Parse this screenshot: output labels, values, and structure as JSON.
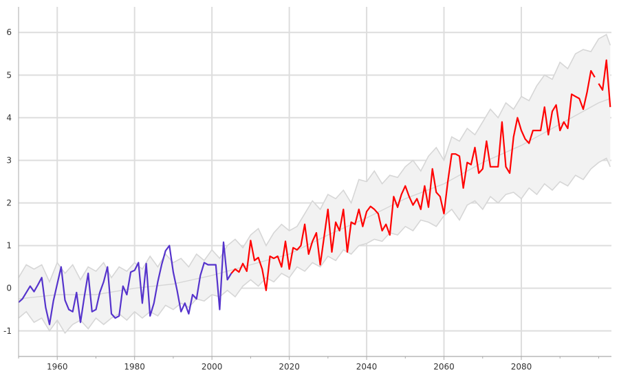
{
  "chart_data": {
    "type": "line",
    "title": "",
    "xlabel": "",
    "ylabel": "",
    "xlim": [
      1950,
      2099
    ],
    "ylim": [
      -1.6,
      6.6
    ],
    "grid": true,
    "legend": "none",
    "x_ticks": [
      "1960",
      "1980",
      "2000",
      "2020",
      "2040",
      "2060",
      "2080"
    ],
    "y_ticks": [
      "-1",
      "0",
      "1",
      "2",
      "3",
      "4",
      "5",
      "6"
    ],
    "colors": {
      "historical": "#5533cc",
      "projection": "#ff0000",
      "band_fill": "#f2f2f2",
      "band_edge": "#d6d6d6",
      "grid": "#dddddd",
      "axis": "#aaaaaa"
    },
    "series": [
      {
        "values": [
          [
            1950,
            -0.33
          ],
          [
            1951,
            -0.25
          ],
          [
            1952,
            -0.1
          ],
          [
            1953,
            0.05
          ],
          [
            1954,
            -0.08
          ],
          [
            1955,
            0.08
          ],
          [
            1956,
            0.25
          ],
          [
            1957,
            -0.45
          ],
          [
            1958,
            -0.85
          ],
          [
            1959,
            -0.3
          ],
          [
            1960,
            0.1
          ],
          [
            1961,
            0.5
          ],
          [
            1962,
            -0.28
          ],
          [
            1963,
            -0.5
          ],
          [
            1964,
            -0.55
          ],
          [
            1965,
            -0.1
          ],
          [
            1966,
            -0.8
          ],
          [
            1967,
            -0.2
          ],
          [
            1968,
            0.35
          ],
          [
            1969,
            -0.55
          ],
          [
            1970,
            -0.5
          ],
          [
            1971,
            -0.1
          ],
          [
            1972,
            0.15
          ],
          [
            1973,
            0.5
          ],
          [
            1974,
            -0.6
          ],
          [
            1975,
            -0.7
          ],
          [
            1976,
            -0.65
          ],
          [
            1977,
            0.05
          ],
          [
            1978,
            -0.15
          ],
          [
            1979,
            0.38
          ],
          [
            1980,
            0.42
          ],
          [
            1981,
            0.6
          ],
          [
            1982,
            -0.35
          ],
          [
            1983,
            0.58
          ],
          [
            1984,
            -0.65
          ],
          [
            1985,
            -0.35
          ],
          [
            1986,
            0.15
          ],
          [
            1987,
            0.55
          ],
          [
            1988,
            0.88
          ],
          [
            1989,
            1.0
          ],
          [
            1990,
            0.38
          ],
          [
            1991,
            -0.05
          ],
          [
            1992,
            -0.55
          ],
          [
            1993,
            -0.35
          ],
          [
            1994,
            -0.6
          ],
          [
            1995,
            -0.15
          ],
          [
            1996,
            -0.25
          ],
          [
            1997,
            0.3
          ],
          [
            1998,
            0.6
          ],
          [
            1999,
            0.55
          ],
          [
            2000,
            0.55
          ],
          [
            2001,
            0.55
          ],
          [
            2002,
            -0.5
          ],
          [
            2003,
            1.08
          ],
          [
            2004,
            0.2
          ],
          [
            2005,
            0.35
          ]
        ]
      },
      {
        "values": [
          [
            2005,
            0.35
          ],
          [
            2006,
            0.45
          ],
          [
            2007,
            0.38
          ],
          [
            2008,
            0.58
          ],
          [
            2009,
            0.4
          ],
          [
            2010,
            1.12
          ],
          [
            2011,
            0.65
          ],
          [
            2012,
            0.72
          ],
          [
            2013,
            0.45
          ],
          [
            2014,
            -0.05
          ],
          [
            2015,
            0.75
          ],
          [
            2016,
            0.7
          ],
          [
            2017,
            0.75
          ],
          [
            2018,
            0.5
          ],
          [
            2019,
            1.1
          ],
          [
            2020,
            0.45
          ],
          [
            2021,
            0.95
          ],
          [
            2022,
            0.9
          ],
          [
            2023,
            1.0
          ],
          [
            2024,
            1.5
          ],
          [
            2025,
            0.8
          ],
          [
            2026,
            1.1
          ],
          [
            2027,
            1.3
          ],
          [
            2028,
            0.55
          ],
          [
            2029,
            1.2
          ],
          [
            2030,
            1.85
          ],
          [
            2031,
            0.85
          ],
          [
            2032,
            1.55
          ],
          [
            2033,
            1.35
          ],
          [
            2034,
            1.85
          ],
          [
            2035,
            0.85
          ],
          [
            2036,
            1.55
          ],
          [
            2037,
            1.5
          ],
          [
            2038,
            1.85
          ],
          [
            2039,
            1.45
          ],
          [
            2040,
            1.8
          ],
          [
            2041,
            1.92
          ],
          [
            2042,
            1.85
          ],
          [
            2043,
            1.75
          ],
          [
            2044,
            1.35
          ],
          [
            2045,
            1.5
          ],
          [
            2046,
            1.25
          ],
          [
            2047,
            2.15
          ],
          [
            2048,
            1.9
          ],
          [
            2049,
            2.2
          ],
          [
            2050,
            2.4
          ],
          [
            2051,
            2.15
          ],
          [
            2052,
            1.95
          ],
          [
            2053,
            2.1
          ],
          [
            2054,
            1.85
          ],
          [
            2055,
            2.4
          ],
          [
            2056,
            1.9
          ],
          [
            2057,
            2.8
          ],
          [
            2058,
            2.25
          ],
          [
            2059,
            2.15
          ],
          [
            2060,
            1.75
          ],
          [
            2061,
            2.5
          ],
          [
            2062,
            3.15
          ],
          [
            2063,
            3.15
          ],
          [
            2064,
            3.1
          ],
          [
            2065,
            2.35
          ],
          [
            2066,
            2.95
          ],
          [
            2067,
            2.9
          ],
          [
            2068,
            3.3
          ],
          [
            2069,
            2.7
          ],
          [
            2070,
            2.8
          ],
          [
            2071,
            3.45
          ],
          [
            2072,
            2.85
          ],
          [
            2073,
            2.85
          ],
          [
            2074,
            2.85
          ],
          [
            2075,
            3.9
          ],
          [
            2076,
            2.85
          ],
          [
            2077,
            2.7
          ],
          [
            2078,
            3.55
          ],
          [
            2079,
            4.0
          ],
          [
            2080,
            3.7
          ],
          [
            2081,
            3.5
          ],
          [
            2082,
            3.4
          ],
          [
            2083,
            3.7
          ],
          [
            2084,
            3.7
          ],
          [
            2085,
            3.7
          ],
          [
            2086,
            4.25
          ],
          [
            2087,
            3.6
          ],
          [
            2088,
            4.15
          ],
          [
            2089,
            4.3
          ],
          [
            2090,
            3.7
          ],
          [
            2091,
            3.9
          ],
          [
            2092,
            3.75
          ],
          [
            2093,
            4.55
          ],
          [
            2094,
            4.5
          ],
          [
            2095,
            4.45
          ],
          [
            2096,
            4.2
          ],
          [
            2097,
            4.6
          ],
          [
            2098,
            5.1
          ],
          [
            2099,
            4.95
          ]
        ]
      },
      {
        "values": [
          [
            2100,
            4.8
          ],
          [
            2101,
            4.65
          ],
          [
            2102,
            5.35
          ],
          [
            2103,
            4.25
          ]
        ]
      }
    ],
    "band": {
      "upper": [
        [
          1950,
          0.25
        ],
        [
          1952,
          0.55
        ],
        [
          1954,
          0.45
        ],
        [
          1956,
          0.55
        ],
        [
          1958,
          0.15
        ],
        [
          1960,
          0.6
        ],
        [
          1962,
          0.35
        ],
        [
          1964,
          0.55
        ],
        [
          1966,
          0.2
        ],
        [
          1968,
          0.5
        ],
        [
          1970,
          0.4
        ],
        [
          1972,
          0.6
        ],
        [
          1974,
          0.25
        ],
        [
          1976,
          0.5
        ],
        [
          1978,
          0.4
        ],
        [
          1980,
          0.6
        ],
        [
          1982,
          0.45
        ],
        [
          1984,
          0.75
        ],
        [
          1986,
          0.5
        ],
        [
          1988,
          0.8
        ],
        [
          1990,
          0.6
        ],
        [
          1992,
          0.7
        ],
        [
          1994,
          0.5
        ],
        [
          1996,
          0.8
        ],
        [
          1998,
          0.65
        ],
        [
          2000,
          0.9
        ],
        [
          2002,
          0.7
        ],
        [
          2004,
          1.0
        ],
        [
          2006,
          1.15
        ],
        [
          2008,
          0.95
        ],
        [
          2010,
          1.25
        ],
        [
          2012,
          1.4
        ],
        [
          2014,
          1.0
        ],
        [
          2016,
          1.3
        ],
        [
          2018,
          1.5
        ],
        [
          2020,
          1.35
        ],
        [
          2022,
          1.45
        ],
        [
          2024,
          1.75
        ],
        [
          2026,
          2.05
        ],
        [
          2028,
          1.85
        ],
        [
          2030,
          2.2
        ],
        [
          2032,
          2.1
        ],
        [
          2034,
          2.3
        ],
        [
          2036,
          2.0
        ],
        [
          2038,
          2.55
        ],
        [
          2040,
          2.5
        ],
        [
          2042,
          2.75
        ],
        [
          2044,
          2.45
        ],
        [
          2046,
          2.65
        ],
        [
          2048,
          2.6
        ],
        [
          2050,
          2.85
        ],
        [
          2052,
          3.0
        ],
        [
          2054,
          2.75
        ],
        [
          2056,
          3.1
        ],
        [
          2058,
          3.3
        ],
        [
          2060,
          3.0
        ],
        [
          2062,
          3.55
        ],
        [
          2064,
          3.45
        ],
        [
          2066,
          3.75
        ],
        [
          2068,
          3.6
        ],
        [
          2070,
          3.9
        ],
        [
          2072,
          4.2
        ],
        [
          2074,
          4.0
        ],
        [
          2076,
          4.35
        ],
        [
          2078,
          4.2
        ],
        [
          2080,
          4.5
        ],
        [
          2082,
          4.4
        ],
        [
          2084,
          4.75
        ],
        [
          2086,
          5.0
        ],
        [
          2088,
          4.9
        ],
        [
          2090,
          5.3
        ],
        [
          2092,
          5.15
        ],
        [
          2094,
          5.5
        ],
        [
          2096,
          5.6
        ],
        [
          2098,
          5.55
        ],
        [
          2100,
          5.85
        ],
        [
          2102,
          5.95
        ],
        [
          2103,
          5.7
        ]
      ],
      "lower": [
        [
          1950,
          -0.7
        ],
        [
          1952,
          -0.55
        ],
        [
          1954,
          -0.8
        ],
        [
          1956,
          -0.7
        ],
        [
          1958,
          -1.0
        ],
        [
          1960,
          -0.75
        ],
        [
          1962,
          -1.05
        ],
        [
          1964,
          -0.85
        ],
        [
          1966,
          -0.75
        ],
        [
          1968,
          -0.95
        ],
        [
          1970,
          -0.7
        ],
        [
          1972,
          -0.85
        ],
        [
          1974,
          -0.7
        ],
        [
          1976,
          -0.6
        ],
        [
          1978,
          -0.75
        ],
        [
          1980,
          -0.55
        ],
        [
          1982,
          -0.7
        ],
        [
          1984,
          -0.55
        ],
        [
          1986,
          -0.65
        ],
        [
          1988,
          -0.4
        ],
        [
          1990,
          -0.5
        ],
        [
          1992,
          -0.35
        ],
        [
          1994,
          -0.45
        ],
        [
          1996,
          -0.25
        ],
        [
          1998,
          -0.3
        ],
        [
          2000,
          -0.15
        ],
        [
          2002,
          -0.2
        ],
        [
          2004,
          -0.05
        ],
        [
          2006,
          -0.2
        ],
        [
          2008,
          0.05
        ],
        [
          2010,
          0.2
        ],
        [
          2012,
          0.05
        ],
        [
          2014,
          0.25
        ],
        [
          2016,
          0.15
        ],
        [
          2018,
          0.35
        ],
        [
          2020,
          0.25
        ],
        [
          2022,
          0.5
        ],
        [
          2024,
          0.4
        ],
        [
          2026,
          0.6
        ],
        [
          2028,
          0.5
        ],
        [
          2030,
          0.75
        ],
        [
          2032,
          0.65
        ],
        [
          2034,
          0.9
        ],
        [
          2036,
          0.8
        ],
        [
          2038,
          1.0
        ],
        [
          2040,
          1.05
        ],
        [
          2042,
          1.15
        ],
        [
          2044,
          1.1
        ],
        [
          2046,
          1.3
        ],
        [
          2048,
          1.25
        ],
        [
          2050,
          1.45
        ],
        [
          2052,
          1.35
        ],
        [
          2054,
          1.6
        ],
        [
          2056,
          1.55
        ],
        [
          2058,
          1.45
        ],
        [
          2060,
          1.7
        ],
        [
          2062,
          1.85
        ],
        [
          2064,
          1.6
        ],
        [
          2066,
          1.95
        ],
        [
          2068,
          2.05
        ],
        [
          2070,
          1.85
        ],
        [
          2072,
          2.15
        ],
        [
          2074,
          2.0
        ],
        [
          2076,
          2.2
        ],
        [
          2078,
          2.25
        ],
        [
          2080,
          2.1
        ],
        [
          2082,
          2.35
        ],
        [
          2084,
          2.2
        ],
        [
          2086,
          2.45
        ],
        [
          2088,
          2.3
        ],
        [
          2090,
          2.5
        ],
        [
          2092,
          2.4
        ],
        [
          2094,
          2.65
        ],
        [
          2096,
          2.55
        ],
        [
          2098,
          2.8
        ],
        [
          2100,
          2.95
        ],
        [
          2102,
          3.05
        ],
        [
          2103,
          2.85
        ]
      ],
      "mid": [
        [
          1950,
          -0.25
        ],
        [
          1960,
          -0.15
        ],
        [
          1970,
          -0.15
        ],
        [
          1980,
          0.0
        ],
        [
          1990,
          0.1
        ],
        [
          2000,
          0.3
        ],
        [
          2010,
          0.55
        ],
        [
          2020,
          0.8
        ],
        [
          2030,
          1.25
        ],
        [
          2040,
          1.65
        ],
        [
          2050,
          2.1
        ],
        [
          2060,
          2.45
        ],
        [
          2070,
          2.95
        ],
        [
          2080,
          3.35
        ],
        [
          2090,
          3.85
        ],
        [
          2100,
          4.35
        ],
        [
          2103,
          4.45
        ]
      ]
    }
  }
}
